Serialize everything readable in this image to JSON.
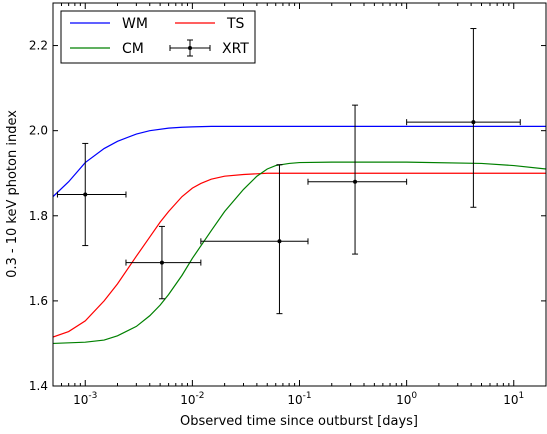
{
  "chart_data": {
    "type": "line",
    "xlabel": "Observed time since outburst [days]",
    "ylabel": "0.3 - 10 keV photon index",
    "x_scale": "log",
    "xlim": [
      0.0005,
      20
    ],
    "ylim": [
      1.4,
      2.3
    ],
    "x_ticks": [
      {
        "value": 0.001,
        "base": "10",
        "exp": "-3"
      },
      {
        "value": 0.01,
        "base": "10",
        "exp": "-2"
      },
      {
        "value": 0.1,
        "base": "10",
        "exp": "-1"
      },
      {
        "value": 1,
        "base": "10",
        "exp": "0"
      },
      {
        "value": 10,
        "base": "10",
        "exp": "1"
      }
    ],
    "y_ticks": [
      {
        "value": 1.4,
        "label": "1.4"
      },
      {
        "value": 1.6,
        "label": "1.6"
      },
      {
        "value": 1.8,
        "label": "1.8"
      },
      {
        "value": 2.0,
        "label": "2.0"
      },
      {
        "value": 2.2,
        "label": "2.2"
      }
    ],
    "grid": false,
    "legend_position": "top-left",
    "series": [
      {
        "name": "WM",
        "color": "#0000ff",
        "x": [
          0.0005,
          0.0007,
          0.001,
          0.0015,
          0.002,
          0.003,
          0.004,
          0.006,
          0.008,
          0.01,
          0.015,
          0.02,
          0.05,
          0.1,
          1,
          20
        ],
        "y": [
          1.845,
          1.88,
          1.925,
          1.958,
          1.975,
          1.992,
          2.0,
          2.006,
          2.008,
          2.009,
          2.01,
          2.01,
          2.01,
          2.01,
          2.01,
          2.01
        ]
      },
      {
        "name": "TS",
        "color": "#ff0000",
        "x": [
          0.0005,
          0.0007,
          0.001,
          0.0015,
          0.002,
          0.003,
          0.004,
          0.005,
          0.006,
          0.008,
          0.01,
          0.012,
          0.015,
          0.02,
          0.03,
          0.05,
          0.1,
          0.3,
          1,
          5,
          20
        ],
        "y": [
          1.515,
          1.528,
          1.553,
          1.6,
          1.64,
          1.705,
          1.75,
          1.785,
          1.81,
          1.845,
          1.865,
          1.876,
          1.886,
          1.893,
          1.897,
          1.9,
          1.9,
          1.9,
          1.9,
          1.9,
          1.9
        ]
      },
      {
        "name": "CM",
        "color": "#008000",
        "x": [
          0.0005,
          0.001,
          0.0015,
          0.002,
          0.003,
          0.004,
          0.005,
          0.006,
          0.008,
          0.01,
          0.015,
          0.02,
          0.03,
          0.04,
          0.05,
          0.06,
          0.08,
          0.1,
          0.2,
          0.5,
          1,
          5,
          10,
          20
        ],
        "y": [
          1.5,
          1.503,
          1.508,
          1.518,
          1.54,
          1.565,
          1.59,
          1.615,
          1.66,
          1.7,
          1.765,
          1.81,
          1.862,
          1.893,
          1.91,
          1.918,
          1.923,
          1.925,
          1.926,
          1.926,
          1.926,
          1.923,
          1.918,
          1.91
        ]
      }
    ],
    "xrt": {
      "name": "XRT",
      "color": "#000000",
      "points": [
        {
          "x": 0.001,
          "x_lo": 0.00055,
          "x_hi": 0.0024,
          "y": 1.85,
          "y_lo": 1.73,
          "y_hi": 1.97
        },
        {
          "x": 0.0052,
          "x_lo": 0.0024,
          "x_hi": 0.012,
          "y": 1.69,
          "y_lo": 1.605,
          "y_hi": 1.775
        },
        {
          "x": 0.065,
          "x_lo": 0.012,
          "x_hi": 0.12,
          "y": 1.74,
          "y_lo": 1.57,
          "y_hi": 1.92
        },
        {
          "x": 0.33,
          "x_lo": 0.12,
          "x_hi": 1.0,
          "y": 1.88,
          "y_lo": 1.71,
          "y_hi": 2.06
        },
        {
          "x": 4.2,
          "x_lo": 1.0,
          "x_hi": 11.5,
          "y": 2.02,
          "y_lo": 1.82,
          "y_hi": 2.24
        }
      ]
    }
  }
}
